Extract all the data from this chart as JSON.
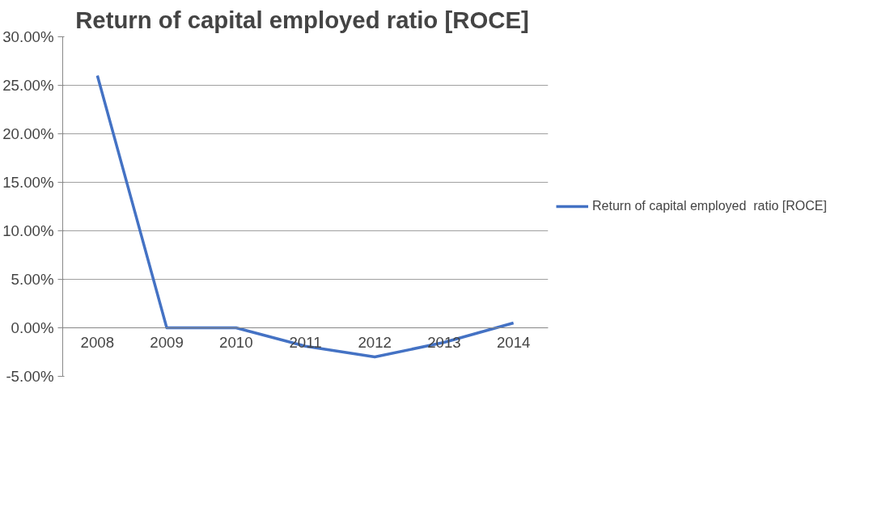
{
  "chart_data": {
    "type": "line",
    "title": "Return of capital employed  ratio [ROCE]",
    "categories": [
      "2008",
      "2009",
      "2010",
      "2011",
      "2012",
      "2013",
      "2014"
    ],
    "series": [
      {
        "name": "Return of capital employed  ratio [ROCE]",
        "color": "#4472c4",
        "values": [
          26.0,
          0,
          0,
          -1.9,
          -3.0,
          -1.5,
          0.5
        ]
      }
    ],
    "ylim": [
      -5,
      30
    ],
    "yticks": [
      {
        "value": -5,
        "label": "-5.00%"
      },
      {
        "value": 0,
        "label": "0.00%"
      },
      {
        "value": 5,
        "label": "5.00%"
      },
      {
        "value": 10,
        "label": "10.00%"
      },
      {
        "value": 15,
        "label": "15.00%"
      },
      {
        "value": 20,
        "label": "20.00%"
      },
      {
        "value": 25,
        "label": "25.00%"
      },
      {
        "value": 30,
        "label": "30.00%"
      }
    ],
    "grid": "y",
    "legend": "right",
    "marker": "none",
    "line_style": "solid"
  }
}
